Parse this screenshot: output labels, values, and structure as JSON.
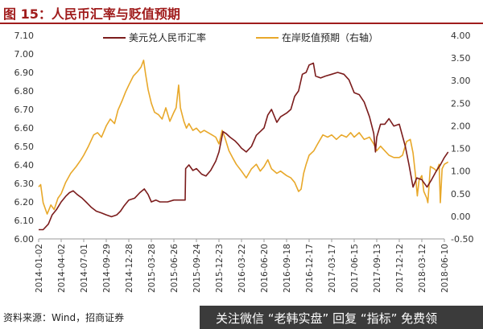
{
  "header": {
    "title": "图 15：人民币汇率与贬值预期"
  },
  "source_note": "资料来源：Wind，招商证券",
  "watermark": "关注微信 “老韩实盘” 回复 “指标” 免费领",
  "colors": {
    "title": "#a01c1c",
    "usdcny": "#7b1c1c",
    "expectation": "#e8a82a"
  },
  "chart_data": {
    "type": "line",
    "title": "",
    "legend_position": "top",
    "grid": false,
    "x_ticks": [
      "2014-01-02",
      "2014-04-02",
      "2014-07-01",
      "2014-09-29",
      "2014-12-28",
      "2015-03-28",
      "2015-06-26",
      "2015-09-24",
      "2015-12-23",
      "2016-03-22",
      "2016-06-20",
      "2016-09-18",
      "2016-12-17",
      "2017-03-17",
      "2017-06-15",
      "2017-09-13",
      "2017-12-12",
      "2018-03-12",
      "2018-06-10"
    ],
    "y_left": {
      "min": 6.0,
      "max": 7.1,
      "ticks": [
        "6.00",
        "6.10",
        "6.20",
        "6.30",
        "6.40",
        "6.50",
        "6.60",
        "6.70",
        "6.80",
        "6.90",
        "7.00",
        "7.10"
      ]
    },
    "y_right": {
      "min": -0.5,
      "max": 4.0,
      "ticks": [
        "-0.50",
        "0.00",
        "0.50",
        "1.00",
        "1.50",
        "2.00",
        "2.50",
        "3.00",
        "3.50",
        "4.00"
      ]
    },
    "series": [
      {
        "name": "美元兑人民币汇率",
        "axis": "left",
        "points": [
          [
            "2014-01-02",
            6.05
          ],
          [
            "2014-01-20",
            6.05
          ],
          [
            "2014-02-10",
            6.08
          ],
          [
            "2014-02-25",
            6.13
          ],
          [
            "2014-03-15",
            6.16
          ],
          [
            "2014-04-02",
            6.2
          ],
          [
            "2014-04-20",
            6.23
          ],
          [
            "2014-05-05",
            6.25
          ],
          [
            "2014-05-20",
            6.26
          ],
          [
            "2014-06-05",
            6.24
          ],
          [
            "2014-06-25",
            6.22
          ],
          [
            "2014-07-10",
            6.2
          ],
          [
            "2014-08-01",
            6.17
          ],
          [
            "2014-08-20",
            6.15
          ],
          [
            "2014-09-10",
            6.14
          ],
          [
            "2014-09-29",
            6.13
          ],
          [
            "2014-10-20",
            6.12
          ],
          [
            "2014-11-10",
            6.13
          ],
          [
            "2014-11-25",
            6.15
          ],
          [
            "2014-12-10",
            6.18
          ],
          [
            "2014-12-28",
            6.21
          ],
          [
            "2015-01-20",
            6.22
          ],
          [
            "2015-02-10",
            6.25
          ],
          [
            "2015-02-28",
            6.27
          ],
          [
            "2015-03-15",
            6.24
          ],
          [
            "2015-03-28",
            6.2
          ],
          [
            "2015-04-15",
            6.21
          ],
          [
            "2015-05-01",
            6.2
          ],
          [
            "2015-06-01",
            6.2
          ],
          [
            "2015-06-26",
            6.21
          ],
          [
            "2015-07-20",
            6.21
          ],
          [
            "2015-08-10",
            6.21
          ],
          [
            "2015-08-12",
            6.38
          ],
          [
            "2015-08-25",
            6.4
          ],
          [
            "2015-09-10",
            6.37
          ],
          [
            "2015-09-24",
            6.38
          ],
          [
            "2015-10-15",
            6.35
          ],
          [
            "2015-11-01",
            6.34
          ],
          [
            "2015-11-20",
            6.37
          ],
          [
            "2015-12-10",
            6.42
          ],
          [
            "2015-12-23",
            6.47
          ],
          [
            "2016-01-08",
            6.58
          ],
          [
            "2016-01-20",
            6.57
          ],
          [
            "2016-02-05",
            6.55
          ],
          [
            "2016-02-25",
            6.53
          ],
          [
            "2016-03-10",
            6.51
          ],
          [
            "2016-03-22",
            6.49
          ],
          [
            "2016-04-10",
            6.47
          ],
          [
            "2016-05-01",
            6.5
          ],
          [
            "2016-05-20",
            6.56
          ],
          [
            "2016-06-05",
            6.58
          ],
          [
            "2016-06-20",
            6.6
          ],
          [
            "2016-07-05",
            6.67
          ],
          [
            "2016-07-20",
            6.7
          ],
          [
            "2016-08-10",
            6.63
          ],
          [
            "2016-08-25",
            6.66
          ],
          [
            "2016-09-18",
            6.68
          ],
          [
            "2016-10-05",
            6.7
          ],
          [
            "2016-10-20",
            6.77
          ],
          [
            "2016-11-05",
            6.8
          ],
          [
            "2016-11-20",
            6.89
          ],
          [
            "2016-12-05",
            6.9
          ],
          [
            "2016-12-17",
            6.94
          ],
          [
            "2017-01-03",
            6.95
          ],
          [
            "2017-01-12",
            6.88
          ],
          [
            "2017-02-01",
            6.87
          ],
          [
            "2017-02-20",
            6.88
          ],
          [
            "2017-03-17",
            6.89
          ],
          [
            "2017-04-10",
            6.9
          ],
          [
            "2017-05-05",
            6.89
          ],
          [
            "2017-05-25",
            6.86
          ],
          [
            "2017-06-15",
            6.79
          ],
          [
            "2017-07-05",
            6.78
          ],
          [
            "2017-07-25",
            6.74
          ],
          [
            "2017-08-15",
            6.66
          ],
          [
            "2017-09-01",
            6.57
          ],
          [
            "2017-09-08",
            6.47
          ],
          [
            "2017-09-13",
            6.55
          ],
          [
            "2017-09-28",
            6.62
          ],
          [
            "2017-10-15",
            6.62
          ],
          [
            "2017-11-01",
            6.65
          ],
          [
            "2017-11-20",
            6.61
          ],
          [
            "2017-12-12",
            6.62
          ],
          [
            "2018-01-05",
            6.5
          ],
          [
            "2018-01-20",
            6.4
          ],
          [
            "2018-02-05",
            6.28
          ],
          [
            "2018-02-20",
            6.33
          ],
          [
            "2018-03-12",
            6.32
          ],
          [
            "2018-04-02",
            6.28
          ],
          [
            "2018-04-20",
            6.32
          ],
          [
            "2018-05-10",
            6.37
          ],
          [
            "2018-05-25",
            6.4
          ],
          [
            "2018-06-10",
            6.44
          ],
          [
            "2018-06-25",
            6.47
          ]
        ]
      },
      {
        "name": "在岸贬值预期（右轴）",
        "axis": "right",
        "points": [
          [
            "2014-01-02",
            0.65
          ],
          [
            "2014-01-10",
            0.7
          ],
          [
            "2014-01-20",
            0.3
          ],
          [
            "2014-02-05",
            0.05
          ],
          [
            "2014-02-20",
            0.25
          ],
          [
            "2014-03-05",
            0.15
          ],
          [
            "2014-03-20",
            0.4
          ],
          [
            "2014-04-02",
            0.5
          ],
          [
            "2014-04-20",
            0.75
          ],
          [
            "2014-05-10",
            0.95
          ],
          [
            "2014-06-01",
            1.1
          ],
          [
            "2014-06-20",
            1.25
          ],
          [
            "2014-07-01",
            1.35
          ],
          [
            "2014-07-20",
            1.55
          ],
          [
            "2014-08-10",
            1.8
          ],
          [
            "2014-08-25",
            1.85
          ],
          [
            "2014-09-10",
            1.75
          ],
          [
            "2014-09-29",
            2.0
          ],
          [
            "2014-10-15",
            2.15
          ],
          [
            "2014-11-01",
            2.05
          ],
          [
            "2014-11-15",
            2.35
          ],
          [
            "2014-12-01",
            2.55
          ],
          [
            "2014-12-15",
            2.75
          ],
          [
            "2014-12-28",
            2.9
          ],
          [
            "2015-01-15",
            3.1
          ],
          [
            "2015-02-01",
            3.2
          ],
          [
            "2015-02-15",
            3.3
          ],
          [
            "2015-02-25",
            3.45
          ],
          [
            "2015-03-05",
            3.15
          ],
          [
            "2015-03-15",
            2.8
          ],
          [
            "2015-03-28",
            2.5
          ],
          [
            "2015-04-10",
            2.3
          ],
          [
            "2015-04-25",
            2.25
          ],
          [
            "2015-05-10",
            2.15
          ],
          [
            "2015-05-25",
            2.4
          ],
          [
            "2015-06-10",
            2.1
          ],
          [
            "2015-06-26",
            2.3
          ],
          [
            "2015-07-05",
            2.4
          ],
          [
            "2015-07-15",
            2.9
          ],
          [
            "2015-07-22",
            2.4
          ],
          [
            "2015-08-05",
            2.1
          ],
          [
            "2015-08-15",
            1.95
          ],
          [
            "2015-08-25",
            2.05
          ],
          [
            "2015-09-10",
            1.9
          ],
          [
            "2015-09-24",
            1.95
          ],
          [
            "2015-10-10",
            1.85
          ],
          [
            "2015-10-25",
            1.9
          ],
          [
            "2015-11-10",
            1.85
          ],
          [
            "2015-11-25",
            1.8
          ],
          [
            "2015-12-10",
            1.75
          ],
          [
            "2015-12-23",
            1.6
          ],
          [
            "2016-01-05",
            1.9
          ],
          [
            "2016-01-15",
            1.75
          ],
          [
            "2016-02-01",
            1.45
          ],
          [
            "2016-02-15",
            1.3
          ],
          [
            "2016-03-01",
            1.15
          ],
          [
            "2016-03-22",
            1.0
          ],
          [
            "2016-04-10",
            0.85
          ],
          [
            "2016-05-01",
            1.05
          ],
          [
            "2016-05-20",
            1.15
          ],
          [
            "2016-06-05",
            1.0
          ],
          [
            "2016-06-20",
            1.1
          ],
          [
            "2016-07-05",
            1.25
          ],
          [
            "2016-07-20",
            1.05
          ],
          [
            "2016-08-10",
            0.95
          ],
          [
            "2016-08-25",
            1.0
          ],
          [
            "2016-09-18",
            0.9
          ],
          [
            "2016-10-05",
            0.85
          ],
          [
            "2016-10-20",
            0.75
          ],
          [
            "2016-11-05",
            0.55
          ],
          [
            "2016-11-15",
            0.6
          ],
          [
            "2016-11-25",
            0.95
          ],
          [
            "2016-12-05",
            1.15
          ],
          [
            "2016-12-17",
            1.35
          ],
          [
            "2017-01-05",
            1.45
          ],
          [
            "2017-01-20",
            1.6
          ],
          [
            "2017-02-10",
            1.8
          ],
          [
            "2017-03-01",
            1.75
          ],
          [
            "2017-03-17",
            1.8
          ],
          [
            "2017-04-05",
            1.7
          ],
          [
            "2017-04-25",
            1.8
          ],
          [
            "2017-05-15",
            1.75
          ],
          [
            "2017-06-01",
            1.85
          ],
          [
            "2017-06-15",
            1.75
          ],
          [
            "2017-07-05",
            1.85
          ],
          [
            "2017-07-25",
            1.7
          ],
          [
            "2017-08-15",
            1.75
          ],
          [
            "2017-09-01",
            1.6
          ],
          [
            "2017-09-13",
            1.45
          ],
          [
            "2017-09-28",
            1.55
          ],
          [
            "2017-10-15",
            1.45
          ],
          [
            "2017-11-01",
            1.35
          ],
          [
            "2017-11-20",
            1.3
          ],
          [
            "2017-12-12",
            1.3
          ],
          [
            "2017-12-25",
            1.35
          ],
          [
            "2018-01-10",
            1.65
          ],
          [
            "2018-01-25",
            1.7
          ],
          [
            "2018-02-05",
            1.4
          ],
          [
            "2018-02-15",
            0.9
          ],
          [
            "2018-02-22",
            0.45
          ],
          [
            "2018-03-01",
            0.8
          ],
          [
            "2018-03-12",
            0.9
          ],
          [
            "2018-03-20",
            0.55
          ],
          [
            "2018-04-01",
            0.4
          ],
          [
            "2018-04-05",
            0.3
          ],
          [
            "2018-04-15",
            1.1
          ],
          [
            "2018-05-01",
            1.05
          ],
          [
            "2018-05-10",
            1.0
          ],
          [
            "2018-05-20",
            1.15
          ],
          [
            "2018-05-25",
            0.3
          ],
          [
            "2018-06-01",
            1.05
          ],
          [
            "2018-06-10",
            1.15
          ],
          [
            "2018-06-25",
            1.2
          ]
        ]
      }
    ]
  }
}
